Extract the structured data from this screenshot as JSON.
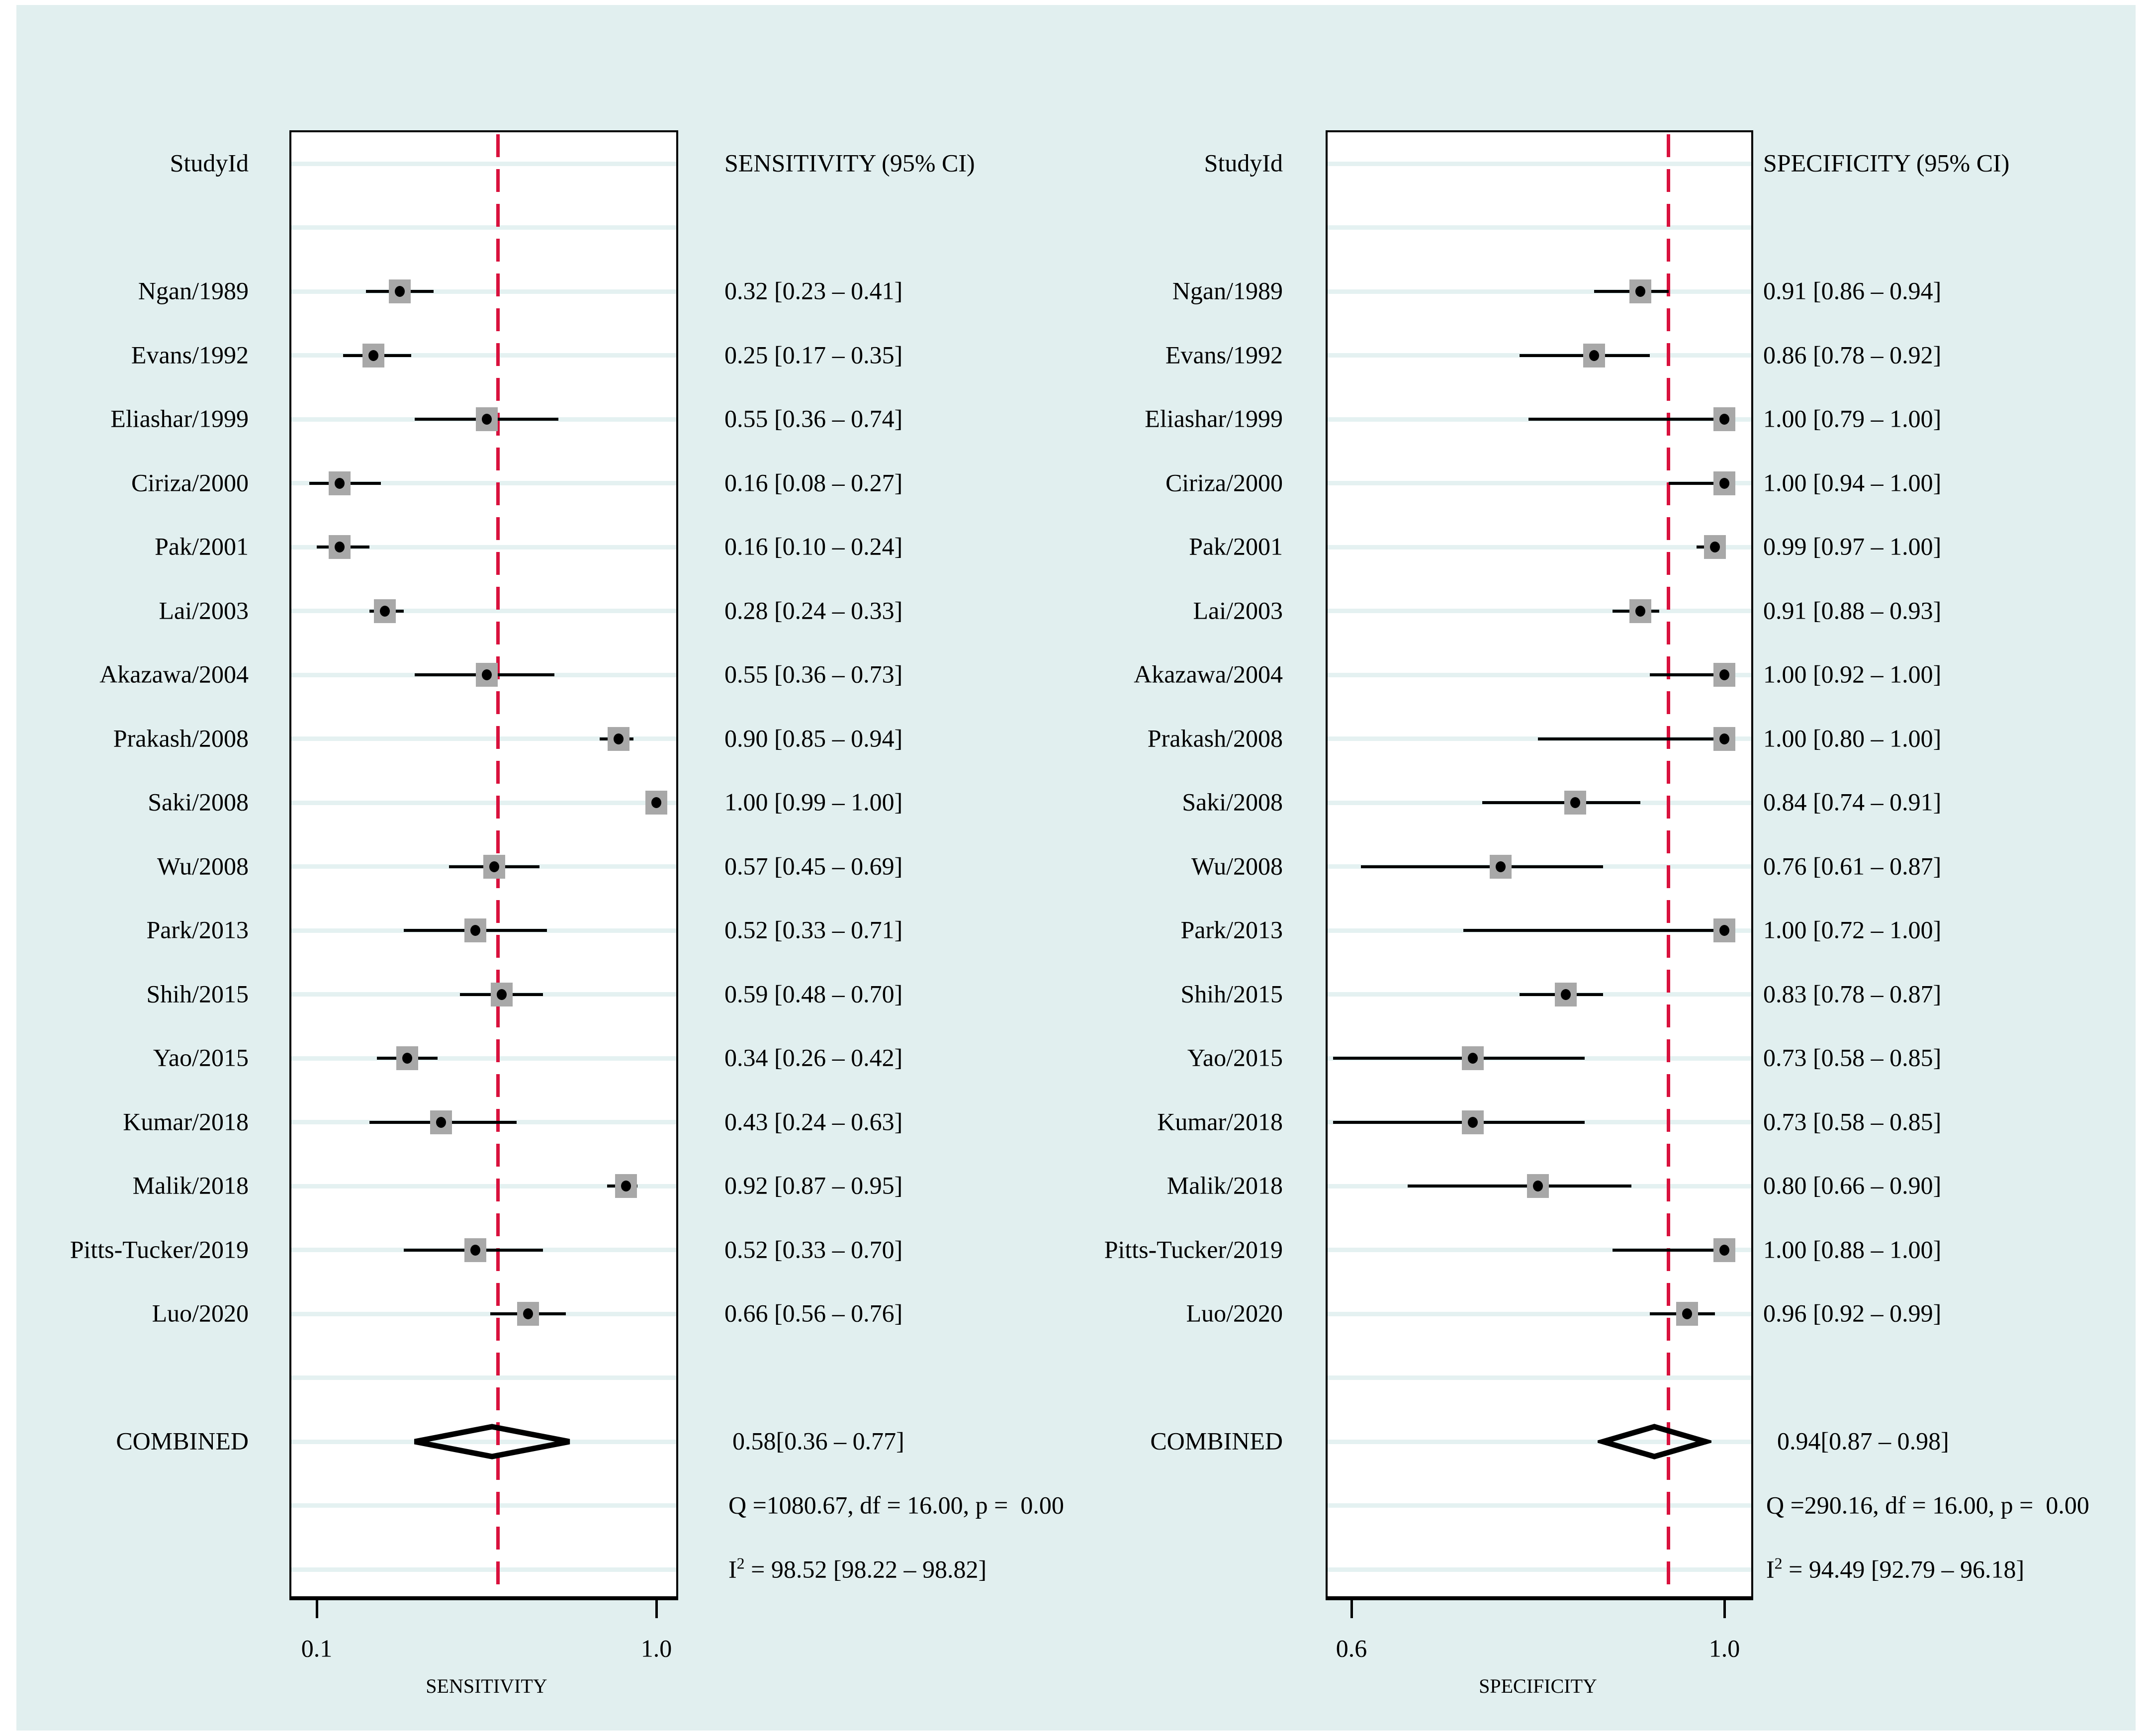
{
  "colors": {
    "background": "#e1efef",
    "row_stripe": "#e4f1f1",
    "plot_bg": "#ffffff",
    "box_border": "#000000",
    "accent_red": "#d9113d",
    "marker_gray": "#a8a8a8",
    "marker_dot": "#000000",
    "text": "#000000"
  },
  "chart_data": [
    {
      "type": "forest",
      "panel": "sensitivity",
      "column_header": "StudyId",
      "value_header": "SENSITIVITY (95% CI)",
      "xlabel": "SENSITIVITY",
      "xlim": [
        0.1,
        1.0
      ],
      "xticks": [
        0.1,
        1.0
      ],
      "xtick_labels": [
        "0.1",
        "1.0"
      ],
      "reference_line": 0.58,
      "studies": [
        {
          "name": "Ngan/1989",
          "est": 0.32,
          "lo": 0.23,
          "hi": 0.41,
          "label": "0.32 [0.23 – 0.41]"
        },
        {
          "name": "Evans/1992",
          "est": 0.25,
          "lo": 0.17,
          "hi": 0.35,
          "label": "0.25 [0.17 – 0.35]"
        },
        {
          "name": "Eliashar/1999",
          "est": 0.55,
          "lo": 0.36,
          "hi": 0.74,
          "label": "0.55 [0.36 – 0.74]"
        },
        {
          "name": "Ciriza/2000",
          "est": 0.16,
          "lo": 0.08,
          "hi": 0.27,
          "label": "0.16 [0.08 – 0.27]"
        },
        {
          "name": "Pak/2001",
          "est": 0.16,
          "lo": 0.1,
          "hi": 0.24,
          "label": "0.16 [0.10 – 0.24]"
        },
        {
          "name": "Lai/2003",
          "est": 0.28,
          "lo": 0.24,
          "hi": 0.33,
          "label": "0.28 [0.24 – 0.33]"
        },
        {
          "name": "Akazawa/2004",
          "est": 0.55,
          "lo": 0.36,
          "hi": 0.73,
          "label": "0.55 [0.36 – 0.73]"
        },
        {
          "name": "Prakash/2008",
          "est": 0.9,
          "lo": 0.85,
          "hi": 0.94,
          "label": "0.90 [0.85 – 0.94]"
        },
        {
          "name": "Saki/2008",
          "est": 1.0,
          "lo": 0.99,
          "hi": 1.0,
          "label": "1.00 [0.99 – 1.00]"
        },
        {
          "name": "Wu/2008",
          "est": 0.57,
          "lo": 0.45,
          "hi": 0.69,
          "label": "0.57 [0.45 – 0.69]"
        },
        {
          "name": "Park/2013",
          "est": 0.52,
          "lo": 0.33,
          "hi": 0.71,
          "label": "0.52 [0.33 – 0.71]"
        },
        {
          "name": "Shih/2015",
          "est": 0.59,
          "lo": 0.48,
          "hi": 0.7,
          "label": "0.59 [0.48 – 0.70]"
        },
        {
          "name": "Yao/2015",
          "est": 0.34,
          "lo": 0.26,
          "hi": 0.42,
          "label": "0.34 [0.26 – 0.42]"
        },
        {
          "name": "Kumar/2018",
          "est": 0.43,
          "lo": 0.24,
          "hi": 0.63,
          "label": "0.43 [0.24 – 0.63]"
        },
        {
          "name": "Malik/2018",
          "est": 0.92,
          "lo": 0.87,
          "hi": 0.95,
          "label": "0.92 [0.87 – 0.95]"
        },
        {
          "name": "Pitts-Tucker/2019",
          "est": 0.52,
          "lo": 0.33,
          "hi": 0.7,
          "label": "0.52 [0.33 – 0.70]"
        },
        {
          "name": "Luo/2020",
          "est": 0.66,
          "lo": 0.56,
          "hi": 0.76,
          "label": "0.66 [0.56 – 0.76]"
        }
      ],
      "combined": {
        "name": "COMBINED",
        "est": 0.58,
        "lo": 0.36,
        "hi": 0.77,
        "label": "0.58[0.36 – 0.77]"
      },
      "heterogeneity_q": "Q =1080.67, df = 16.00, p =  0.00",
      "i2_base": "I",
      "i2_sup": "2",
      "i2_rest": " = 98.52 [98.22 – 98.82]"
    },
    {
      "type": "forest",
      "panel": "specificity",
      "column_header": "StudyId",
      "value_header": "SPECIFICITY (95% CI)",
      "xlabel": "SPECIFICITY",
      "xlim": [
        0.6,
        1.0
      ],
      "xticks": [
        0.6,
        1.0
      ],
      "xtick_labels": [
        "0.6",
        "1.0"
      ],
      "reference_line": 0.94,
      "studies": [
        {
          "name": "Ngan/1989",
          "est": 0.91,
          "lo": 0.86,
          "hi": 0.94,
          "label": "0.91 [0.86 – 0.94]"
        },
        {
          "name": "Evans/1992",
          "est": 0.86,
          "lo": 0.78,
          "hi": 0.92,
          "label": "0.86 [0.78 – 0.92]"
        },
        {
          "name": "Eliashar/1999",
          "est": 1.0,
          "lo": 0.79,
          "hi": 1.0,
          "label": "1.00 [0.79 – 1.00]"
        },
        {
          "name": "Ciriza/2000",
          "est": 1.0,
          "lo": 0.94,
          "hi": 1.0,
          "label": "1.00 [0.94 – 1.00]"
        },
        {
          "name": "Pak/2001",
          "est": 0.99,
          "lo": 0.97,
          "hi": 1.0,
          "label": "0.99 [0.97 – 1.00]"
        },
        {
          "name": "Lai/2003",
          "est": 0.91,
          "lo": 0.88,
          "hi": 0.93,
          "label": "0.91 [0.88 – 0.93]"
        },
        {
          "name": "Akazawa/2004",
          "est": 1.0,
          "lo": 0.92,
          "hi": 1.0,
          "label": "1.00 [0.92 – 1.00]"
        },
        {
          "name": "Prakash/2008",
          "est": 1.0,
          "lo": 0.8,
          "hi": 1.0,
          "label": "1.00 [0.80 – 1.00]"
        },
        {
          "name": "Saki/2008",
          "est": 0.84,
          "lo": 0.74,
          "hi": 0.91,
          "label": "0.84 [0.74 – 0.91]"
        },
        {
          "name": "Wu/2008",
          "est": 0.76,
          "lo": 0.61,
          "hi": 0.87,
          "label": "0.76 [0.61 – 0.87]"
        },
        {
          "name": "Park/2013",
          "est": 1.0,
          "lo": 0.72,
          "hi": 1.0,
          "label": "1.00 [0.72 – 1.00]"
        },
        {
          "name": "Shih/2015",
          "est": 0.83,
          "lo": 0.78,
          "hi": 0.87,
          "label": "0.83 [0.78 – 0.87]"
        },
        {
          "name": "Yao/2015",
          "est": 0.73,
          "lo": 0.58,
          "hi": 0.85,
          "label": "0.73 [0.58 – 0.85]"
        },
        {
          "name": "Kumar/2018",
          "est": 0.73,
          "lo": 0.58,
          "hi": 0.85,
          "label": "0.73 [0.58 – 0.85]"
        },
        {
          "name": "Malik/2018",
          "est": 0.8,
          "lo": 0.66,
          "hi": 0.9,
          "label": "0.80 [0.66 – 0.90]"
        },
        {
          "name": "Pitts-Tucker/2019",
          "est": 1.0,
          "lo": 0.88,
          "hi": 1.0,
          "label": "1.00 [0.88 – 1.00]"
        },
        {
          "name": "Luo/2020",
          "est": 0.96,
          "lo": 0.92,
          "hi": 0.99,
          "label": "0.96 [0.92 – 0.99]"
        }
      ],
      "combined": {
        "name": "COMBINED",
        "est": 0.94,
        "lo": 0.87,
        "hi": 0.98,
        "label": "0.94[0.87 – 0.98]"
      },
      "heterogeneity_q": "Q =290.16, df = 16.00, p =  0.00",
      "i2_base": "I",
      "i2_sup": "2",
      "i2_rest": " = 94.49 [92.79 – 96.18]"
    }
  ]
}
